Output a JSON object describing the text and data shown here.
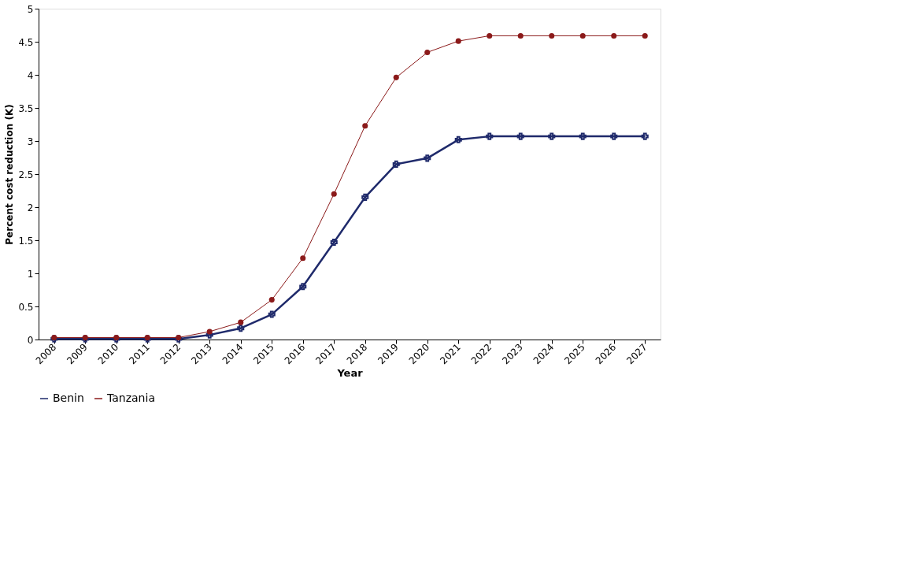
{
  "chart_data": {
    "type": "line",
    "xlabel": "Year",
    "ylabel": "Percent cost reduction (K)",
    "categories": [
      "2008",
      "2009",
      "2010",
      "2011",
      "2012",
      "2013",
      "2014",
      "2015",
      "2016",
      "2017",
      "2018",
      "2019",
      "2020",
      "2021",
      "2022",
      "2023",
      "2024",
      "2025",
      "2026",
      "2027"
    ],
    "series": [
      {
        "name": "Benin",
        "color": "#1f2a6b",
        "marker": "cross",
        "values": [
          0.01,
          0.01,
          0.01,
          0.01,
          0.01,
          0.07,
          0.17,
          0.38,
          0.8,
          1.47,
          2.15,
          2.65,
          2.74,
          3.02,
          3.07,
          3.07,
          3.07,
          3.07,
          3.07,
          3.07
        ]
      },
      {
        "name": "Tanzania",
        "color": "#8b1a1a",
        "marker": "circle",
        "values": [
          0.03,
          0.03,
          0.03,
          0.03,
          0.03,
          0.12,
          0.26,
          0.6,
          1.23,
          2.2,
          3.23,
          3.96,
          4.34,
          4.51,
          4.59,
          4.59,
          4.59,
          4.59,
          4.59,
          4.59
        ]
      }
    ],
    "ylim": [
      0,
      5
    ],
    "yticks": [
      0,
      0.5,
      1,
      1.5,
      2,
      2.5,
      3,
      3.5,
      4,
      4.5,
      5
    ],
    "grid": false,
    "legend": "bottom"
  }
}
